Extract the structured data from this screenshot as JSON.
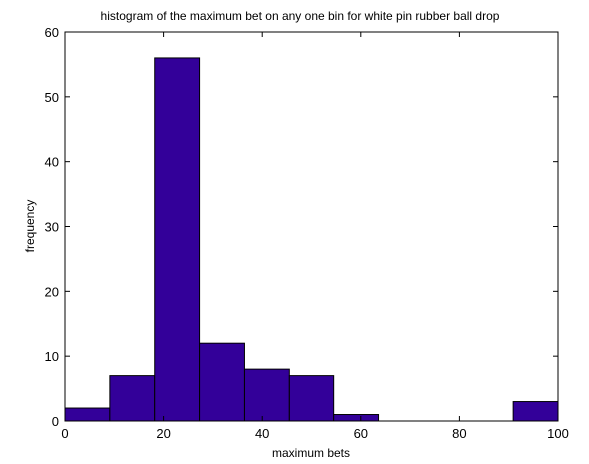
{
  "chart_data": {
    "type": "bar",
    "title": "histogram of the maximum bet on any one bin for white pin rubber ball drop",
    "xlabel": "maximum bets",
    "ylabel": "frequency",
    "xlim": [
      0,
      100
    ],
    "ylim": [
      0,
      60
    ],
    "xticks": [
      0,
      20,
      40,
      60,
      80,
      100
    ],
    "yticks": [
      0,
      10,
      20,
      30,
      40,
      50,
      60
    ],
    "grid": false,
    "bar_color": "#330099",
    "bins": [
      {
        "x0": 0,
        "x1": 9.1,
        "count": 2
      },
      {
        "x0": 9.1,
        "x1": 18.2,
        "count": 7
      },
      {
        "x0": 18.2,
        "x1": 27.3,
        "count": 56
      },
      {
        "x0": 27.3,
        "x1": 36.4,
        "count": 12
      },
      {
        "x0": 36.4,
        "x1": 45.5,
        "count": 8
      },
      {
        "x0": 45.5,
        "x1": 54.5,
        "count": 7
      },
      {
        "x0": 54.5,
        "x1": 63.6,
        "count": 1
      },
      {
        "x0": 63.6,
        "x1": 72.7,
        "count": 0
      },
      {
        "x0": 72.7,
        "x1": 81.8,
        "count": 0
      },
      {
        "x0": 81.8,
        "x1": 90.9,
        "count": 0
      },
      {
        "x0": 90.9,
        "x1": 100,
        "count": 3
      }
    ]
  }
}
